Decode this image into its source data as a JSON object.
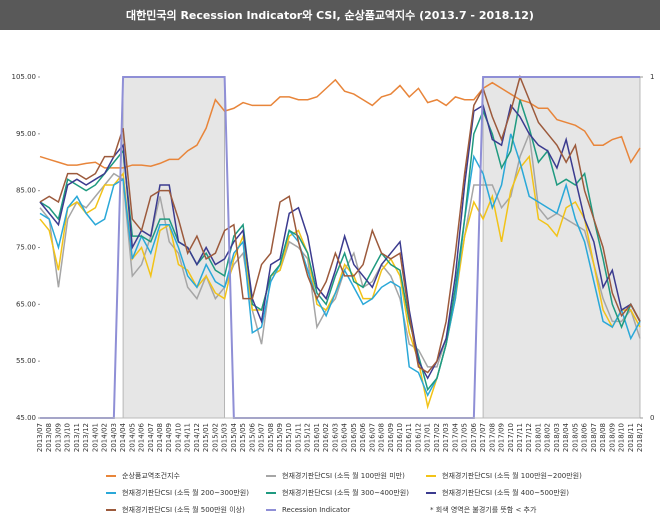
{
  "chart_data": {
    "type": "line",
    "title": "대한민국의 Recession Indicator와 CSI, 순상품교역지수 (2013.7 - 2018.12)",
    "categories": [
      "2013/07",
      "2013/08",
      "2013/09",
      "2013/10",
      "2013/11",
      "2013/12",
      "2014/01",
      "2014/02",
      "2014/03",
      "2014/04",
      "2014/05",
      "2014/06",
      "2014/07",
      "2014/08",
      "2014/09",
      "2014/10",
      "2014/11",
      "2014/12",
      "2015/01",
      "2015/02",
      "2015/03",
      "2015/04",
      "2015/05",
      "2015/06",
      "2015/07",
      "2015/08",
      "2015/09",
      "2015/10",
      "2015/11",
      "2015/12",
      "2016/01",
      "2016/02",
      "2016/03",
      "2016/04",
      "2016/05",
      "2016/06",
      "2016/07",
      "2016/08",
      "2016/09",
      "2016/10",
      "2016/11",
      "2016/12",
      "2017/01",
      "2017/02",
      "2017/03",
      "2017/04",
      "2017/05",
      "2017/06",
      "2017/07",
      "2017/08",
      "2017/09",
      "2017/10",
      "2017/11",
      "2017/12",
      "2018/01",
      "2018/02",
      "2018/03",
      "2018/04",
      "2018/05",
      "2018/06",
      "2018/07",
      "2018/08",
      "2018/09",
      "2018/10",
      "2018/11",
      "2018/12"
    ],
    "series": [
      {
        "name": "순상품교역조건지수",
        "color": "#e8853a",
        "values": [
          91,
          90.5,
          90,
          89.5,
          89.5,
          89.8,
          90,
          89,
          89,
          89,
          89.5,
          89.5,
          89.3,
          89.8,
          90.5,
          90.5,
          92,
          93,
          96,
          101,
          99,
          99.5,
          100.5,
          100,
          100,
          100,
          101.5,
          101.5,
          101,
          101,
          101.5,
          103,
          104.5,
          102.5,
          102,
          101,
          100,
          101.5,
          102,
          103.5,
          101.5,
          103,
          100.5,
          101,
          100,
          101.5,
          101,
          101,
          103,
          104,
          103,
          102,
          101,
          100.5,
          99.5,
          99.5,
          97.5,
          97,
          96.5,
          95.5,
          93,
          93,
          94,
          94.5,
          90,
          92.5
        ]
      },
      {
        "name": "현재경기판단CSI (소득 월 100만원 미만)",
        "color": "#a6a6a6",
        "values": [
          82,
          80,
          68,
          80,
          83,
          82,
          84,
          86,
          88,
          87,
          70,
          72,
          77,
          84,
          76,
          74,
          68,
          66,
          70,
          66,
          68,
          72,
          74,
          64,
          58,
          70,
          71,
          76,
          75,
          73,
          61,
          64,
          66,
          71,
          74,
          68,
          69,
          72,
          70,
          66,
          58,
          57,
          54,
          54,
          59,
          67,
          77,
          86,
          86,
          86,
          82,
          84,
          91,
          95,
          82,
          80,
          81,
          80,
          79,
          78,
          72,
          66,
          62,
          62,
          64,
          59
        ]
      },
      {
        "name": "현재경기판단CSI (소득 월 100만원~200만원)",
        "color": "#f2c318",
        "values": [
          80,
          78,
          71,
          82,
          83,
          81,
          82,
          86,
          86,
          88,
          73,
          75,
          70,
          78,
          79,
          72,
          71,
          68,
          70,
          67,
          66,
          73,
          77,
          64,
          64,
          70,
          71,
          77,
          78,
          74,
          65,
          64,
          67,
          72,
          70,
          66,
          66,
          71,
          73,
          70,
          60,
          55,
          47,
          52,
          58,
          66,
          77,
          83,
          80,
          84,
          76,
          85,
          89,
          91,
          80,
          79,
          77,
          82,
          83,
          80,
          72,
          64,
          61,
          64,
          64,
          61
        ]
      },
      {
        "name": "현재경기판단CSI (소득 월 200~300만원)",
        "color": "#2aa8d8",
        "values": [
          81,
          80,
          75,
          82,
          84,
          81,
          79,
          80,
          86,
          87,
          73,
          77,
          74,
          79,
          79,
          75,
          70,
          68,
          72,
          69,
          68,
          74,
          76,
          60,
          61,
          69,
          72,
          78,
          76,
          71,
          66,
          63,
          67,
          71,
          68,
          65,
          66,
          68,
          69,
          68,
          54,
          53,
          49,
          52,
          58,
          66,
          80,
          91,
          88,
          82,
          86,
          95,
          90,
          84,
          83,
          82,
          81,
          86,
          80,
          76,
          69,
          62,
          61,
          64,
          59,
          62
        ]
      },
      {
        "name": "현재경기판단CSI (소득 월 300~400만원)",
        "color": "#1f9a80",
        "values": [
          83,
          82,
          80,
          87,
          86,
          85,
          86,
          88,
          90,
          92,
          77,
          77,
          76,
          80,
          80,
          76,
          75,
          72,
          74,
          71,
          70,
          77,
          79,
          65,
          64,
          70,
          72,
          78,
          77,
          74,
          67,
          65,
          70,
          74,
          69,
          68,
          71,
          74,
          72,
          71,
          62,
          56,
          50,
          52,
          58,
          68,
          80,
          95,
          99,
          95,
          89,
          92,
          101,
          96,
          90,
          92,
          86,
          87,
          86,
          88,
          80,
          73,
          65,
          61,
          65,
          62
        ]
      },
      {
        "name": "현재경기판단CSI (소득 월 400~500만원)",
        "color": "#3b3b8f",
        "values": [
          83,
          81,
          79,
          86,
          87,
          86,
          87,
          88,
          91,
          93,
          75,
          78,
          77,
          86,
          86,
          76,
          75,
          72,
          75,
          72,
          73,
          76,
          78,
          66,
          62,
          72,
          73,
          81,
          82,
          77,
          68,
          66,
          71,
          77,
          72,
          70,
          68,
          72,
          74,
          76,
          64,
          55,
          52,
          55,
          59,
          70,
          86,
          99,
          100,
          94,
          93,
          100,
          98,
          95,
          93,
          92,
          89,
          94,
          87,
          80,
          76,
          68,
          71,
          64,
          65,
          62
        ]
      },
      {
        "name": "현재경기판단CSI (소득 월 500만원 이상)",
        "color": "#9c5a3c",
        "values": [
          83,
          84,
          83,
          88,
          88,
          87,
          88,
          91,
          91,
          96,
          80,
          78,
          84,
          85,
          85,
          80,
          74,
          77,
          73,
          74,
          78,
          79,
          66,
          66,
          72,
          74,
          83,
          84,
          76,
          70,
          66,
          69,
          74,
          70,
          70,
          72,
          78,
          74,
          73,
          74,
          63,
          54,
          53,
          55,
          62,
          74,
          88,
          100,
          103,
          98,
          94,
          99,
          105,
          101,
          97,
          95,
          93,
          90,
          93,
          85,
          80,
          75,
          67,
          63,
          65,
          62
        ]
      },
      {
        "name": "Recession Indicator",
        "color": "#8f8fd6",
        "axis": "y2",
        "shade": "#e6e6e6",
        "values": [
          0,
          0,
          0,
          0,
          0,
          0,
          0,
          0,
          0,
          1,
          1,
          1,
          1,
          1,
          1,
          1,
          1,
          1,
          1,
          1,
          1,
          0,
          0,
          0,
          0,
          0,
          0,
          0,
          0,
          0,
          0,
          0,
          0,
          0,
          0,
          0,
          0,
          0,
          0,
          0,
          0,
          0,
          0,
          0,
          0,
          0,
          0,
          0,
          1,
          1,
          1,
          1,
          1,
          1,
          1,
          1,
          1,
          1,
          1,
          1,
          1,
          1,
          1,
          1,
          1,
          1
        ]
      }
    ],
    "ylim": [
      45,
      105
    ],
    "yticks": [
      {
        "value": 45,
        "label": "45.00"
      },
      {
        "value": 55,
        "label": "55.00"
      },
      {
        "value": 65,
        "label": "65.00"
      },
      {
        "value": 75,
        "label": "75.00"
      },
      {
        "value": 85,
        "label": "85.00"
      },
      {
        "value": 95,
        "label": "95.00"
      },
      {
        "value": 105,
        "label": "105.00"
      }
    ],
    "y2lim": [
      0,
      1
    ],
    "y2ticks": [
      0,
      1
    ],
    "grid": false,
    "note": "* 회색 영역은 불경기를 뜻함 < 추가"
  }
}
